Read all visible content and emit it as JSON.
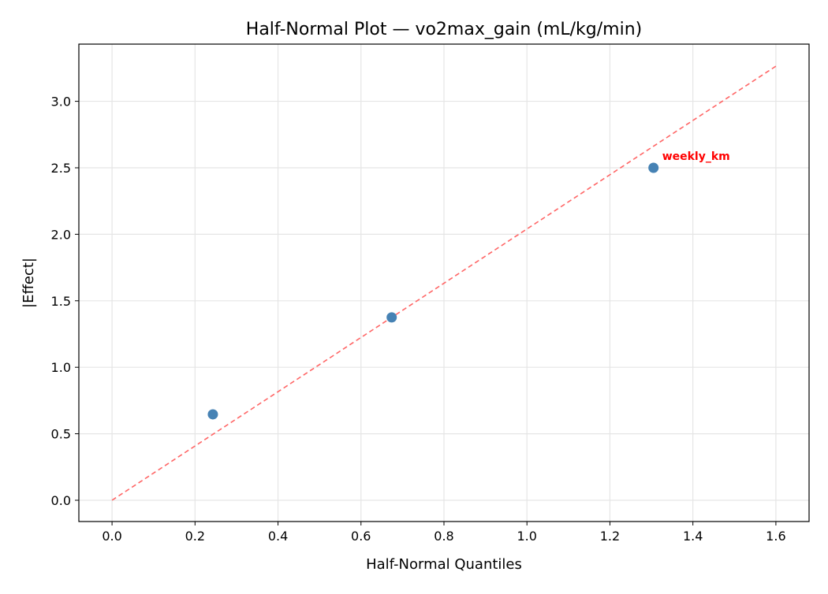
{
  "chart_data": {
    "type": "scatter",
    "title": "Half-Normal Plot — vo2max_gain (mL/kg/min)",
    "xlabel": "Half-Normal Quantiles",
    "ylabel": "|Effect|",
    "xlim": [
      -0.08,
      1.68
    ],
    "ylim": [
      -0.16,
      3.43
    ],
    "xticks": [
      0.0,
      0.2,
      0.4,
      0.6,
      0.8,
      1.0,
      1.2,
      1.4,
      1.6
    ],
    "xtick_labels": [
      "0.0",
      "0.2",
      "0.4",
      "0.6",
      "0.8",
      "1.0",
      "1.2",
      "1.4",
      "1.6"
    ],
    "yticks": [
      0.0,
      0.5,
      1.0,
      1.5,
      2.0,
      2.5,
      3.0
    ],
    "ytick_labels": [
      "0.0",
      "0.5",
      "1.0",
      "1.5",
      "2.0",
      "2.5",
      "3.0"
    ],
    "grid": true,
    "points": [
      {
        "x": 0.243,
        "y": 0.646,
        "label": ""
      },
      {
        "x": 0.674,
        "y": 1.375,
        "label": ""
      },
      {
        "x": 1.305,
        "y": 2.5,
        "label": "weekly_km"
      }
    ],
    "reference_line": {
      "x": [
        0.0,
        1.603
      ],
      "y": [
        0.0,
        3.27
      ],
      "style": "dashed"
    },
    "colors": {
      "points": "#4682b4",
      "reference_line": "#ff6666",
      "annotation": "#ff0000",
      "grid": "#e5e5e5"
    }
  }
}
